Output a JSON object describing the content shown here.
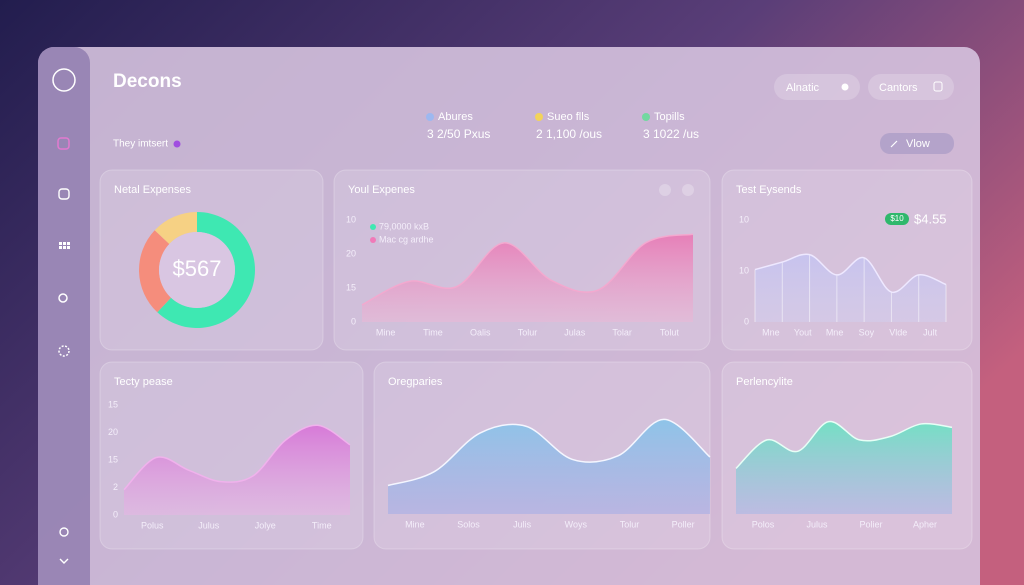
{
  "header": {
    "title": "Decons",
    "subtitle": "They imtsert",
    "buttons": [
      "Alnatic",
      "Cantors"
    ],
    "view_button": "Vlow"
  },
  "stats": [
    {
      "label": "Abures",
      "value": "3 2/50 Pxus",
      "color": "#9db8f0"
    },
    {
      "label": "Sueo flls",
      "value": "2 1,100 /ous",
      "color": "#f2d35a"
    },
    {
      "label": "Topills",
      "value": "3 1022 /us",
      "color": "#72d8a0"
    }
  ],
  "cards": [
    {
      "title": "Netal Expenses",
      "type": "donut",
      "center": "$567",
      "series": [
        {
          "color": "#3ee8b2",
          "value": 62
        },
        {
          "color": "#f58d7c",
          "value": 25
        },
        {
          "color": "#f6d184",
          "value": 13
        }
      ]
    },
    {
      "title": "Youl Expenes",
      "type": "area",
      "legend": [
        {
          "name": "79,0000 kxB",
          "color": "#3ee8b2"
        },
        {
          "name": "Mac cg ardhe",
          "color": "#f07ab8"
        }
      ],
      "y_labels": [
        10,
        20,
        15,
        0
      ],
      "x_labels": [
        "Mine",
        "Time",
        "Oalis",
        "Tolur",
        "Julas",
        "Tolar",
        "Tolut"
      ],
      "values": [
        16,
        38,
        33,
        74,
        39,
        30,
        74,
        82
      ],
      "ylim": [
        0,
        100
      ],
      "colors": [
        "#e77fb8",
        "#e9b8d6"
      ],
      "line": "#f3a9cf"
    },
    {
      "title": "Test Eysends",
      "type": "area",
      "badge": "$10",
      "badge_value": "$4.55",
      "y_labels": [
        10,
        10,
        0
      ],
      "x_labels": [
        "Mne",
        "Yout",
        "Mne",
        "Soy",
        "Vlde",
        "Jult"
      ],
      "values": [
        49,
        56,
        63,
        44,
        60,
        28,
        44,
        35
      ],
      "ylim": [
        0,
        100
      ],
      "grid": true,
      "colors": [
        "#c7c3ee",
        "#d3cdec"
      ],
      "line": "#eee8ff"
    },
    {
      "title": "Tecty pease",
      "type": "area",
      "y_labels": [
        15,
        20,
        15,
        2,
        0
      ],
      "x_labels": [
        "Polus",
        "Julus",
        "Jolye",
        "Time"
      ],
      "values": [
        22,
        50,
        39,
        29,
        34,
        65,
        78,
        61
      ],
      "ylim": [
        0,
        100
      ],
      "colors": [
        "#d77ad8",
        "#e5b6e4"
      ],
      "line": "#f0b2ec"
    },
    {
      "title": "Oregparies",
      "type": "area",
      "x_labels": [
        "Mine",
        "Solos",
        "Julis",
        "Woys",
        "Tolur",
        "Poller"
      ],
      "values": [
        25,
        37,
        71,
        77,
        48,
        51,
        83,
        50
      ],
      "ylim": [
        0,
        100
      ],
      "colors": [
        "#8ec4e8",
        "#a6aee6"
      ],
      "line": "#f4f6ff"
    },
    {
      "title": "Perlencylite",
      "type": "area",
      "x_labels": [
        "Polos",
        "Julus",
        "Polier",
        "Apher"
      ],
      "values": [
        40,
        65,
        55,
        81,
        65,
        68,
        79,
        76
      ],
      "ylim": [
        0,
        100
      ],
      "colors": [
        "#74e0c4",
        "#a9b8e6"
      ],
      "line": "#e7fff6"
    }
  ]
}
